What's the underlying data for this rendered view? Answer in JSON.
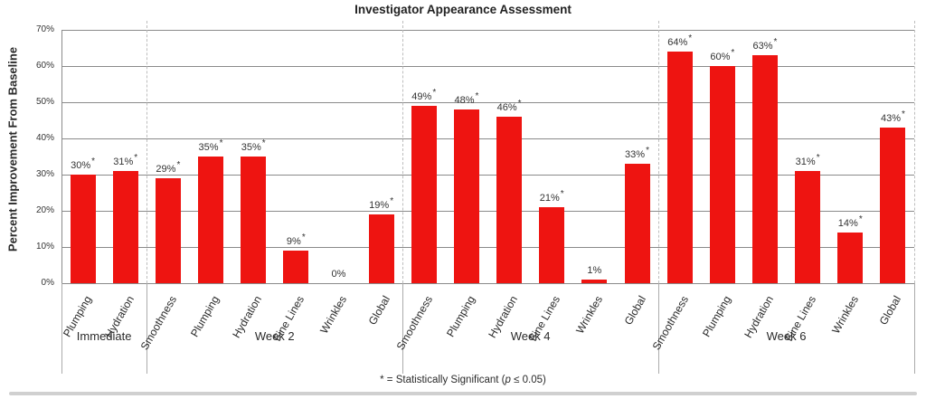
{
  "title": "Investigator Appearance Assessment",
  "footnote": {
    "prefix": "* = Statistically Significant (",
    "p": "p",
    "suffix": " ≤ 0.05)"
  },
  "chart_data": {
    "type": "bar",
    "title": "Investigator Appearance Assessment",
    "xlabel": "",
    "ylabel": "Percent Improvement From Baseline",
    "ylim": [
      0,
      70
    ],
    "ytick_step": 10,
    "ytick_labels": [
      "0%",
      "10%",
      "20%",
      "30%",
      "40%",
      "50%",
      "60%",
      "70%"
    ],
    "grid": true,
    "bar_color": "#ee1411",
    "significance_marker": "*",
    "groups": [
      {
        "label": "Immediate",
        "bars": [
          {
            "category": "Plumping",
            "value": 30,
            "label": "30%",
            "significant": true
          },
          {
            "category": "Hydration",
            "value": 31,
            "label": "31%",
            "significant": true
          }
        ]
      },
      {
        "label": "Week 2",
        "bars": [
          {
            "category": "Smoothness",
            "value": 29,
            "label": "29%",
            "significant": true
          },
          {
            "category": "Plumping",
            "value": 35,
            "label": "35%",
            "significant": true
          },
          {
            "category": "Hydration",
            "value": 35,
            "label": "35%",
            "significant": true
          },
          {
            "category": "Fine Lines",
            "value": 9,
            "label": "9%",
            "significant": true
          },
          {
            "category": "Wrinkles",
            "value": 0,
            "label": "0%",
            "significant": false
          },
          {
            "category": "Global",
            "value": 19,
            "label": "19%",
            "significant": true
          }
        ]
      },
      {
        "label": "Week 4",
        "bars": [
          {
            "category": "Smoothness",
            "value": 49,
            "label": "49%",
            "significant": true
          },
          {
            "category": "Plumping",
            "value": 48,
            "label": "48%",
            "significant": true
          },
          {
            "category": "Hydration",
            "value": 46,
            "label": "46%",
            "significant": true
          },
          {
            "category": "Fine Lines",
            "value": 21,
            "label": "21%",
            "significant": true
          },
          {
            "category": "Wrinkles",
            "value": 1,
            "label": "1%",
            "significant": false
          },
          {
            "category": "Global",
            "value": 33,
            "label": "33%",
            "significant": true
          }
        ]
      },
      {
        "label": "Week 6",
        "bars": [
          {
            "category": "Smoothness",
            "value": 64,
            "label": "64%",
            "significant": true
          },
          {
            "category": "Plumping",
            "value": 60,
            "label": "60%",
            "significant": true
          },
          {
            "category": "Hydration",
            "value": 63,
            "label": "63%",
            "significant": true
          },
          {
            "category": "Fine Lines",
            "value": 31,
            "label": "31%",
            "significant": true
          },
          {
            "category": "Wrinkles",
            "value": 14,
            "label": "14%",
            "significant": true
          },
          {
            "category": "Global",
            "value": 43,
            "label": "43%",
            "significant": true
          }
        ]
      }
    ]
  }
}
